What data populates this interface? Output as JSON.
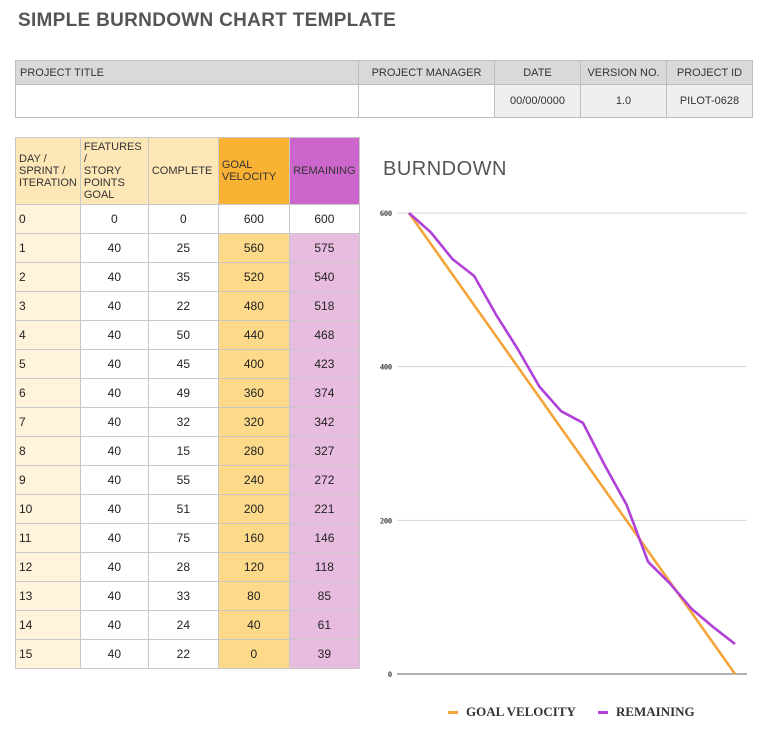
{
  "page_title": "SIMPLE BURNDOWN CHART TEMPLATE",
  "project": {
    "headers": [
      "PROJECT TITLE",
      "PROJECT MANAGER",
      "DATE",
      "VERSION NO.",
      "PROJECT ID"
    ],
    "values": [
      "",
      "",
      "00/00/0000",
      "1.0",
      "PILOT-0628"
    ]
  },
  "table": {
    "headers": {
      "day": [
        "DAY /",
        "SPRINT /",
        "ITERATION"
      ],
      "features": [
        "FEATURES /",
        "STORY",
        "POINTS",
        "GOAL"
      ],
      "complete": "COMPLETE",
      "goal": [
        "GOAL",
        "VELOCITY"
      ],
      "remaining": "REMAINING"
    },
    "rows": [
      {
        "day": "0",
        "features": "0",
        "complete": "0",
        "goal": "600",
        "remaining": "600"
      },
      {
        "day": "1",
        "features": "40",
        "complete": "25",
        "goal": "560",
        "remaining": "575"
      },
      {
        "day": "2",
        "features": "40",
        "complete": "35",
        "goal": "520",
        "remaining": "540"
      },
      {
        "day": "3",
        "features": "40",
        "complete": "22",
        "goal": "480",
        "remaining": "518"
      },
      {
        "day": "4",
        "features": "40",
        "complete": "50",
        "goal": "440",
        "remaining": "468"
      },
      {
        "day": "5",
        "features": "40",
        "complete": "45",
        "goal": "400",
        "remaining": "423"
      },
      {
        "day": "6",
        "features": "40",
        "complete": "49",
        "goal": "360",
        "remaining": "374"
      },
      {
        "day": "7",
        "features": "40",
        "complete": "32",
        "goal": "320",
        "remaining": "342"
      },
      {
        "day": "8",
        "features": "40",
        "complete": "15",
        "goal": "280",
        "remaining": "327"
      },
      {
        "day": "9",
        "features": "40",
        "complete": "55",
        "goal": "240",
        "remaining": "272"
      },
      {
        "day": "10",
        "features": "40",
        "complete": "51",
        "goal": "200",
        "remaining": "221"
      },
      {
        "day": "11",
        "features": "40",
        "complete": "75",
        "goal": "160",
        "remaining": "146"
      },
      {
        "day": "12",
        "features": "40",
        "complete": "28",
        "goal": "120",
        "remaining": "118"
      },
      {
        "day": "13",
        "features": "40",
        "complete": "33",
        "goal": "80",
        "remaining": "85"
      },
      {
        "day": "14",
        "features": "40",
        "complete": "24",
        "goal": "40",
        "remaining": "61"
      },
      {
        "day": "15",
        "features": "40",
        "complete": "22",
        "goal": "0",
        "remaining": "39"
      }
    ]
  },
  "chart_data": {
    "type": "line",
    "title": "BURNDOWN",
    "x": [
      0,
      1,
      2,
      3,
      4,
      5,
      6,
      7,
      8,
      9,
      10,
      11,
      12,
      13,
      14,
      15
    ],
    "series": [
      {
        "name": "GOAL VELOCITY",
        "color": "#f4a53a",
        "values": [
          600,
          560,
          520,
          480,
          440,
          400,
          360,
          320,
          280,
          240,
          200,
          160,
          120,
          80,
          40,
          0
        ]
      },
      {
        "name": "REMAINING",
        "color": "#b040d8",
        "values": [
          600,
          575,
          540,
          518,
          468,
          423,
          374,
          342,
          327,
          272,
          221,
          146,
          118,
          85,
          61,
          39
        ]
      }
    ],
    "yticks": [
      "0",
      "200",
      "400",
      "600"
    ],
    "ylim": [
      0,
      600
    ],
    "grid": true,
    "legend": "bottom"
  }
}
